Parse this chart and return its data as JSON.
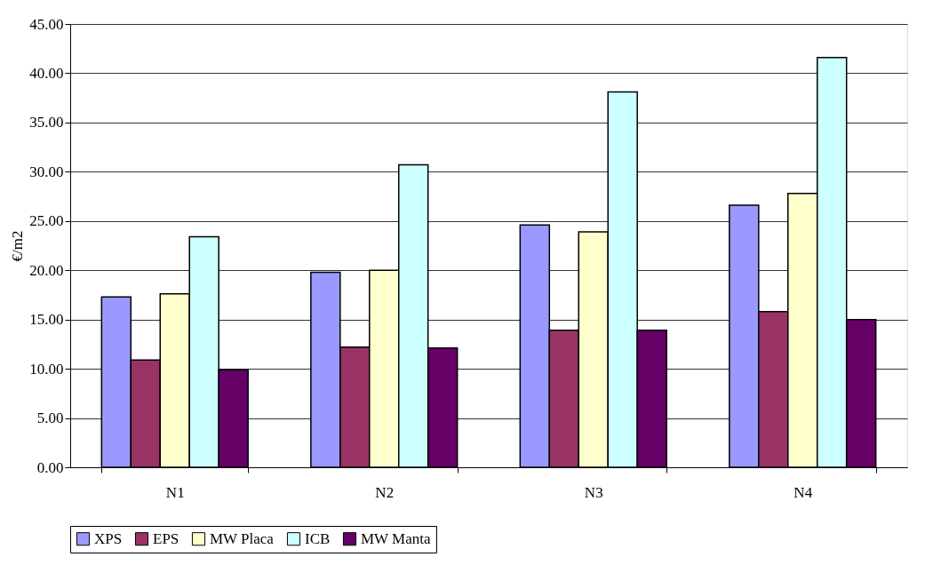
{
  "chart_data": {
    "type": "bar",
    "ylabel": "€/m2",
    "categories": [
      "N1",
      "N2",
      "N3",
      "N4"
    ],
    "series": [
      {
        "name": "XPS",
        "color": "#9999ff",
        "values": [
          17.3,
          19.8,
          24.6,
          26.6
        ]
      },
      {
        "name": "EPS",
        "color": "#993366",
        "values": [
          10.9,
          12.2,
          13.9,
          15.8
        ]
      },
      {
        "name": "MW Placa",
        "color": "#ffffcc",
        "values": [
          17.6,
          20.0,
          23.9,
          27.8
        ]
      },
      {
        "name": "ICB",
        "color": "#ccffff",
        "values": [
          23.4,
          30.7,
          38.1,
          41.6
        ]
      },
      {
        "name": "MW Manta",
        "color": "#660066",
        "values": [
          9.9,
          12.1,
          13.9,
          15.0
        ]
      }
    ],
    "ylim": [
      0,
      45
    ],
    "yticks": [
      {
        "value": 0,
        "label": "0.00"
      },
      {
        "value": 5,
        "label": "5.00"
      },
      {
        "value": 10,
        "label": "10.00"
      },
      {
        "value": 15,
        "label": "15.00"
      },
      {
        "value": 20,
        "label": "20.00"
      },
      {
        "value": 25,
        "label": "25.00"
      },
      {
        "value": 30,
        "label": "30.00"
      },
      {
        "value": 35,
        "label": "35.00"
      },
      {
        "value": 40,
        "label": "40.00"
      },
      {
        "value": 45,
        "label": "45.00"
      }
    ],
    "grid": "y",
    "legend": "bottom"
  }
}
